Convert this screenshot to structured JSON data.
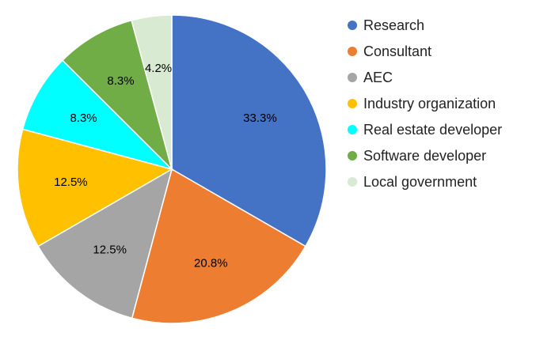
{
  "chart_data": {
    "type": "pie",
    "legend_position": "right",
    "slices": [
      {
        "name": "Research",
        "value": 33.3,
        "label": "33.3%",
        "color": "#4472C4"
      },
      {
        "name": "Consultant",
        "value": 20.8,
        "label": "20.8%",
        "color": "#ED7D31"
      },
      {
        "name": "AEC",
        "value": 12.5,
        "label": "12.5%",
        "color": "#A5A5A5"
      },
      {
        "name": "Industry organization",
        "value": 12.5,
        "label": "12.5%",
        "color": "#FFC000"
      },
      {
        "name": "Real estate developer",
        "value": 8.3,
        "label": "8.3%",
        "color": "#00FFFF"
      },
      {
        "name": "Software developer",
        "value": 8.3,
        "label": "8.3%",
        "color": "#70AD47"
      },
      {
        "name": "Local government",
        "value": 4.2,
        "label": "4.2%",
        "color": "#D9EAD3"
      }
    ]
  }
}
